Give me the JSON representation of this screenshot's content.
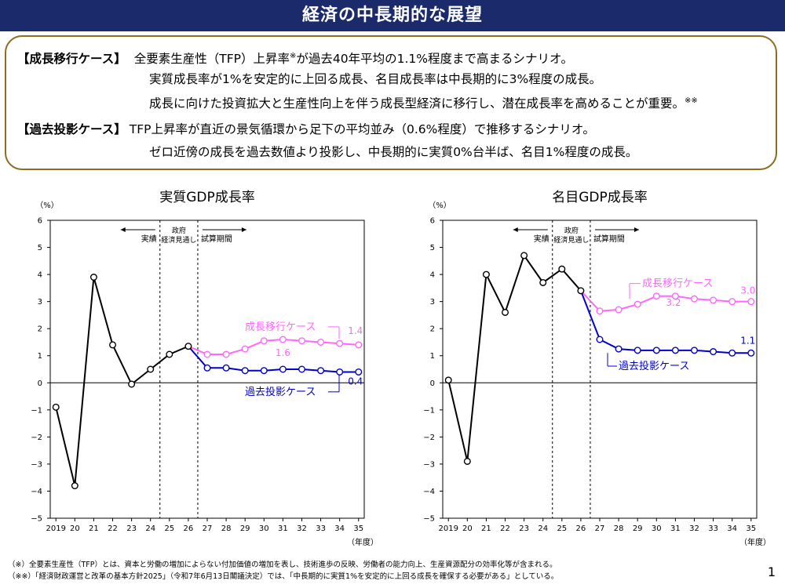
{
  "page_title": "経済の中長期的な展望",
  "summary": {
    "growth": {
      "label": "【成長移行ケース】",
      "line1_pre": "全要素生産性（TFP）上昇率",
      "line1_sup": "※",
      "line1_post": "が過去40年平均の1.1%程度まで高まるシナリオ。",
      "line2": "実質成長率が1%を安定的に上回る成長、名目成長率は中長期的に3%程度の成長。",
      "line3": "成長に向けた投資拡大と生産性向上を伴う成長型経済に移行し、潜在成長率を高めることが重要。",
      "line3_sup": "※※"
    },
    "past": {
      "label": "【過去投影ケース】",
      "line1": "TFP上昇率が直近の景気循環から足下の平均並み（0.6%程度）で推移するシナリオ。",
      "line2": "ゼロ近傍の成長を過去数値より投影し、中長期的に実質0%台半ば、名目1%程度の成長。"
    }
  },
  "footnotes": {
    "note1": "（※）全要素生産性（TFP）とは、資本と労働の増加によらない付加価値の増加を表し、技術進歩の反映、労働者の能力向上、生産資源配分の効率化等が含まれる。",
    "note2": "（※※）「経済財政運営と改革の基本方針2025」（令和7年6月13日閣議決定）では、「中長期的に実質1%を安定的に上回る成長を確保する必要がある」としている。"
  },
  "page_number": "1",
  "chart_data": [
    {
      "type": "line",
      "title": "実質GDP成長率",
      "ylabel": "（%）",
      "xlabel": "（年度）",
      "ylim": [
        -5,
        6
      ],
      "yticks": [
        "−5",
        "−4",
        "−3",
        "−2",
        "−1",
        "0",
        "1",
        "2",
        "3",
        "4",
        "5",
        "6"
      ],
      "x": [
        2019,
        2020,
        2021,
        2022,
        2023,
        2024,
        2025,
        2026,
        2027,
        2028,
        2029,
        2030,
        2031,
        2032,
        2033,
        2034,
        2035
      ],
      "xtick_labels": [
        "2019",
        "20",
        "21",
        "22",
        "23",
        "24",
        "25",
        "26",
        "27",
        "28",
        "29",
        "30",
        "31",
        "32",
        "33",
        "34",
        "35"
      ],
      "period_labels": {
        "actual": "実績",
        "gov_line1": "政府",
        "gov_line2": "経済見通し",
        "trial": "試算期間"
      },
      "history": {
        "x": [
          2019,
          2020,
          2021,
          2022,
          2023,
          2024,
          2025,
          2026
        ],
        "values": [
          -0.9,
          -3.8,
          3.9,
          1.4,
          -0.05,
          0.5,
          1.05,
          1.35
        ],
        "color": "#000000"
      },
      "series": [
        {
          "name": "成長移行ケース",
          "x": [
            2026,
            2027,
            2028,
            2029,
            2030,
            2031,
            2032,
            2033,
            2034,
            2035
          ],
          "values": [
            1.35,
            1.05,
            1.05,
            1.25,
            1.55,
            1.6,
            1.55,
            1.5,
            1.45,
            1.4
          ],
          "color": "#ff66ff",
          "end_label": "1.4",
          "peak_label": "1.6"
        },
        {
          "name": "過去投影ケース",
          "x": [
            2026,
            2027,
            2028,
            2029,
            2030,
            2031,
            2032,
            2033,
            2034,
            2035
          ],
          "values": [
            1.35,
            0.55,
            0.55,
            0.45,
            0.45,
            0.5,
            0.5,
            0.45,
            0.4,
            0.4
          ],
          "color": "#0000cc",
          "end_label": "0.4"
        }
      ]
    },
    {
      "type": "line",
      "title": "名目GDP成長率",
      "ylabel": "（%）",
      "xlabel": "（年度）",
      "ylim": [
        -5,
        6
      ],
      "yticks": [
        "−5",
        "−4",
        "−3",
        "−2",
        "−1",
        "0",
        "1",
        "2",
        "3",
        "4",
        "5",
        "6"
      ],
      "x": [
        2019,
        2020,
        2021,
        2022,
        2023,
        2024,
        2025,
        2026,
        2027,
        2028,
        2029,
        2030,
        2031,
        2032,
        2033,
        2034,
        2035
      ],
      "xtick_labels": [
        "2019",
        "20",
        "21",
        "22",
        "23",
        "24",
        "25",
        "26",
        "27",
        "28",
        "29",
        "30",
        "31",
        "32",
        "33",
        "34",
        "35"
      ],
      "period_labels": {
        "actual": "実績",
        "gov_line1": "政府",
        "gov_line2": "経済見通し",
        "trial": "試算期間"
      },
      "history": {
        "x": [
          2019,
          2020,
          2021,
          2022,
          2023,
          2024,
          2025,
          2026
        ],
        "values": [
          0.1,
          -2.9,
          4.0,
          2.6,
          4.7,
          3.7,
          4.2,
          3.4
        ],
        "color": "#000000"
      },
      "series": [
        {
          "name": "成長移行ケース",
          "x": [
            2026,
            2027,
            2028,
            2029,
            2030,
            2031,
            2032,
            2033,
            2034,
            2035
          ],
          "values": [
            3.4,
            2.65,
            2.7,
            2.9,
            3.2,
            3.2,
            3.1,
            3.05,
            3.0,
            3.0
          ],
          "color": "#ff66ff",
          "end_label": "3.0",
          "peak_label": "3.2"
        },
        {
          "name": "過去投影ケース",
          "x": [
            2026,
            2027,
            2028,
            2029,
            2030,
            2031,
            2032,
            2033,
            2034,
            2035
          ],
          "values": [
            3.4,
            1.6,
            1.25,
            1.2,
            1.2,
            1.2,
            1.2,
            1.15,
            1.1,
            1.1
          ],
          "color": "#0000cc",
          "end_label": "1.1"
        }
      ]
    }
  ]
}
